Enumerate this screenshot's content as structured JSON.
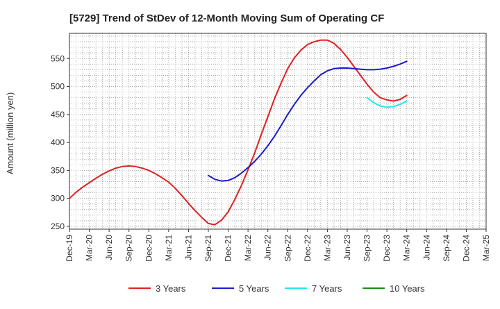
{
  "chart_data": {
    "type": "line",
    "title": "[5729]  Trend of StDev of 12-Month Moving Sum of Operating CF",
    "xlabel": "",
    "ylabel": "Amount (million yen)",
    "ylim": [
      245,
      595
    ],
    "y_ticks": [
      250,
      300,
      350,
      400,
      450,
      500,
      550
    ],
    "x_tick_labels": [
      "Dec-19",
      "Mar-20",
      "Jun-20",
      "Sep-20",
      "Dec-20",
      "Mar-21",
      "Jun-21",
      "Sep-21",
      "Dec-21",
      "Mar-22",
      "Jun-22",
      "Sep-22",
      "Dec-22",
      "Mar-23",
      "Jun-23",
      "Sep-23",
      "Dec-23",
      "Mar-24",
      "Jun-24",
      "Sep-24",
      "Dec-24",
      "Mar-25"
    ],
    "grid": true,
    "legend_position": "bottom",
    "series": [
      {
        "name": "3 Years",
        "color": "#e02020",
        "x": [
          "Dec-19",
          "Jan-20",
          "Feb-20",
          "Mar-20",
          "Apr-20",
          "May-20",
          "Jun-20",
          "Jul-20",
          "Aug-20",
          "Sep-20",
          "Oct-20",
          "Nov-20",
          "Dec-20",
          "Jan-21",
          "Feb-21",
          "Mar-21",
          "Apr-21",
          "May-21",
          "Jun-21",
          "Jul-21",
          "Aug-21",
          "Sep-21",
          "Oct-21",
          "Nov-21",
          "Dec-21",
          "Jan-22",
          "Feb-22",
          "Mar-22",
          "Apr-22",
          "May-22",
          "Jun-22",
          "Jul-22",
          "Aug-22",
          "Sep-22",
          "Oct-22",
          "Nov-22",
          "Dec-22",
          "Jan-23",
          "Feb-23",
          "Mar-23",
          "Apr-23",
          "May-23",
          "Jun-23",
          "Jul-23",
          "Aug-23",
          "Sep-23",
          "Oct-23",
          "Nov-23",
          "Dec-23",
          "Jan-24",
          "Feb-24",
          "Mar-24"
        ],
        "values": [
          300,
          311,
          320,
          328,
          336,
          343,
          349,
          354,
          357,
          358,
          357,
          354,
          350,
          344,
          337,
          329,
          318,
          305,
          291,
          278,
          266,
          255,
          253,
          261,
          276,
          298,
          323,
          351,
          381,
          414,
          446,
          478,
          506,
          532,
          551,
          565,
          575,
          580,
          583,
          583,
          577,
          566,
          552,
          536,
          520,
          504,
          490,
          480,
          476,
          474,
          477,
          484
        ]
      },
      {
        "name": "5 Years",
        "color": "#1a1acc",
        "x": [
          "Sep-21",
          "Oct-21",
          "Nov-21",
          "Dec-21",
          "Jan-22",
          "Feb-22",
          "Mar-22",
          "Apr-22",
          "May-22",
          "Jun-22",
          "Jul-22",
          "Aug-22",
          "Sep-22",
          "Oct-22",
          "Nov-22",
          "Dec-22",
          "Jan-23",
          "Feb-23",
          "Mar-23",
          "Apr-23",
          "May-23",
          "Jun-23",
          "Jul-23",
          "Aug-23",
          "Sep-23",
          "Oct-23",
          "Nov-23",
          "Dec-23",
          "Jan-24",
          "Feb-24",
          "Mar-24"
        ],
        "values": [
          341,
          334,
          331,
          332,
          337,
          345,
          355,
          366,
          379,
          394,
          411,
          430,
          450,
          468,
          484,
          498,
          510,
          521,
          528,
          532,
          533,
          533,
          532,
          531,
          530,
          530,
          531,
          533,
          536,
          540,
          545
        ]
      },
      {
        "name": "7 Years",
        "color": "#22e8e8",
        "x": [
          "Sep-23",
          "Oct-23",
          "Nov-23",
          "Dec-23",
          "Jan-24",
          "Feb-24",
          "Mar-24"
        ],
        "values": [
          480,
          471,
          465,
          463,
          464,
          468,
          474
        ]
      },
      {
        "name": "10 Years",
        "color": "#1a8a1a",
        "x": [],
        "values": []
      }
    ]
  }
}
